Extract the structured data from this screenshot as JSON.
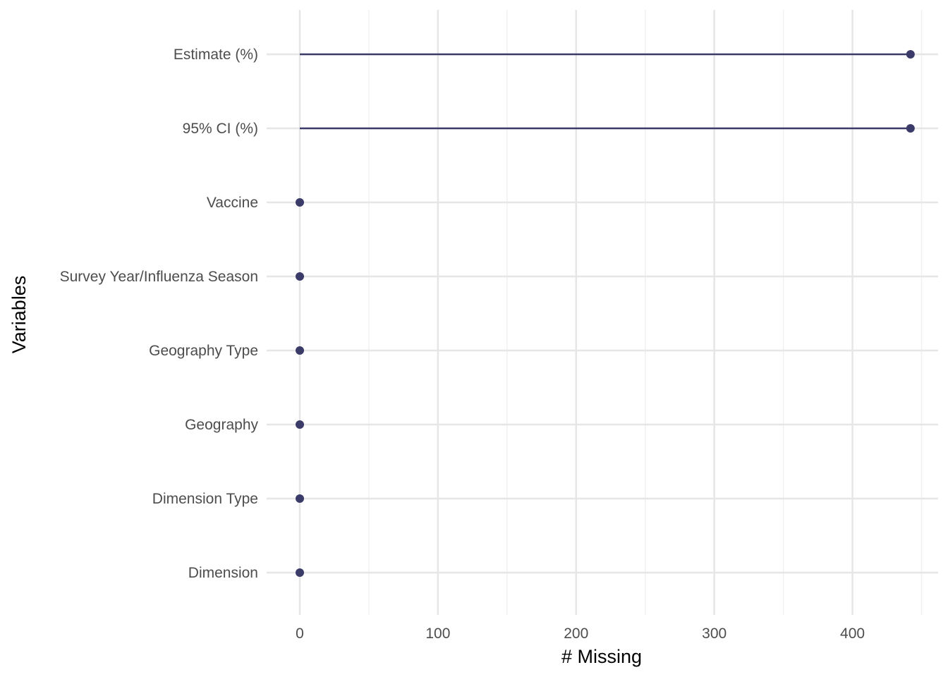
{
  "chart_data": {
    "type": "lollipop",
    "orientation": "horizontal",
    "xlabel": "# Missing",
    "ylabel": "Variables",
    "xlim": [
      -24,
      462
    ],
    "x_ticks": [
      0,
      100,
      200,
      300,
      400
    ],
    "x_minor_ticks": [
      50,
      150,
      250,
      350,
      450
    ],
    "grid": true,
    "colors": {
      "mark": "#3b3b69",
      "grid_major": "#e6e6e6",
      "grid_minor": "#f0f0f0"
    },
    "categories": [
      "Estimate (%)",
      "95% CI (%)",
      "Vaccine",
      "Survey Year/Influenza Season",
      "Geography Type",
      "Geography",
      "Dimension Type",
      "Dimension"
    ],
    "values": [
      442,
      442,
      0,
      0,
      0,
      0,
      0,
      0
    ]
  }
}
